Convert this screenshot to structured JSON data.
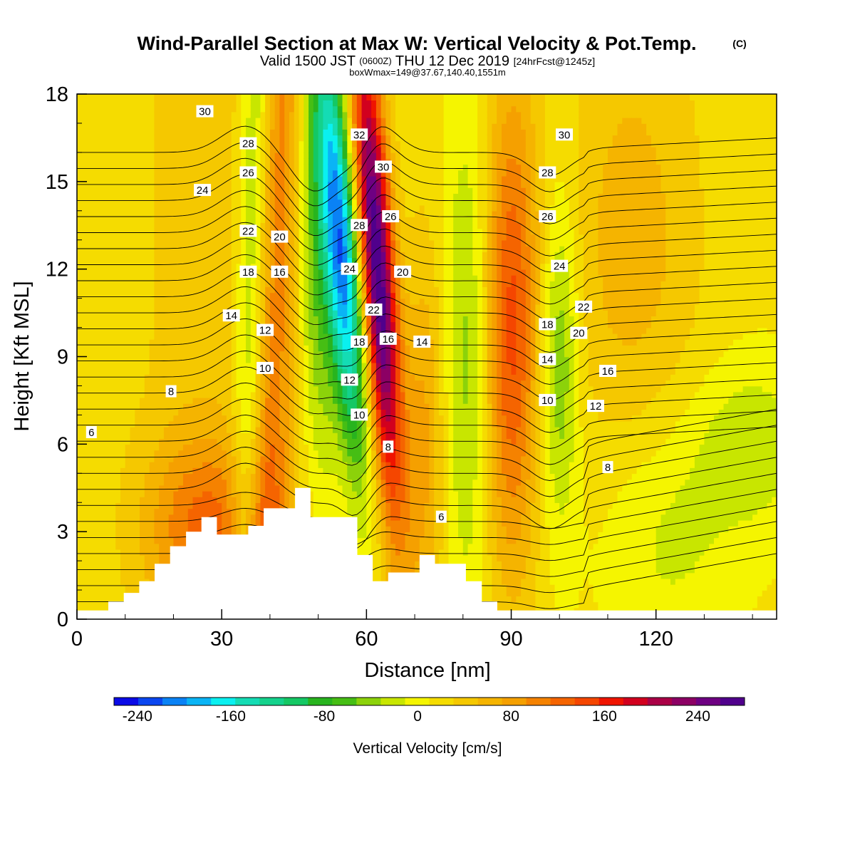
{
  "title": {
    "main": "Wind-Parallel Section at Max W: Vertical Velocity & Pot.Temp.",
    "copyright": "(C)",
    "valid_prefix": "Valid 1500 JST",
    "valid_utc": "(0600Z)",
    "valid_date": "THU 12 Dec 2019",
    "forecast": "[24hrFcst@1245z]",
    "box_info": "boxWmax=149@37.67,140.40,1551m"
  },
  "chart_data": {
    "type": "heatmap",
    "xlabel": "Distance [nm]",
    "ylabel": "Height [Kft MSL]",
    "xlim": [
      0,
      145
    ],
    "ylim": [
      0,
      18
    ],
    "x_ticks": [
      "0",
      "30",
      "60",
      "90",
      "120"
    ],
    "y_ticks": [
      "0",
      "3",
      "6",
      "9",
      "12",
      "15",
      "18"
    ],
    "x_tick_values": [
      0,
      30,
      60,
      90,
      120
    ],
    "y_tick_values": [
      0,
      3,
      6,
      9,
      12,
      15,
      18
    ],
    "colorbar": {
      "label": "Vertical Velocity [cm/s]",
      "min": -260,
      "max": 280,
      "step": 20,
      "tick_labels": [
        "-240",
        "-160",
        "-80",
        "0",
        "80",
        "160",
        "240"
      ],
      "tick_values": [
        -240,
        -160,
        -80,
        0,
        80,
        160,
        240
      ],
      "colors": [
        "#0a0ae6",
        "#0a46f0",
        "#0a82f5",
        "#0ab4f5",
        "#0af0f0",
        "#14dcb4",
        "#14d28c",
        "#14c864",
        "#28b41e",
        "#46be14",
        "#8cd20a",
        "#c8e600",
        "#f5f500",
        "#f5dc00",
        "#f5c800",
        "#f5b400",
        "#f5a000",
        "#f58200",
        "#f56400",
        "#f54600",
        "#f01400",
        "#d2001e",
        "#aa0046",
        "#8c0064",
        "#6e0082",
        "#50008c"
      ]
    },
    "terrain": {
      "x": [
        0,
        6.5,
        6.5,
        9.7,
        9.7,
        12.9,
        12.9,
        16.1,
        16.1,
        19.3,
        19.3,
        22.6,
        22.6,
        25.8,
        25.8,
        29,
        29,
        35.5,
        35.5,
        38.7,
        38.7,
        45.2,
        45.2,
        48.4,
        48.4,
        58.1,
        58.1,
        61.3,
        61.3,
        64.5,
        64.5,
        71,
        71,
        74.2,
        74.2,
        80.6,
        80.6,
        83.9,
        83.9,
        87.1,
        87.1,
        90.3,
        90.3,
        93.5,
        93.5,
        145
      ],
      "y": [
        0.3,
        0.3,
        0.6,
        0.6,
        0.9,
        0.9,
        1.3,
        1.3,
        1.9,
        1.9,
        2.5,
        2.5,
        3.0,
        3.0,
        3.5,
        3.5,
        2.9,
        2.9,
        3.2,
        3.2,
        3.8,
        3.8,
        4.5,
        4.5,
        3.5,
        3.5,
        2.2,
        2.2,
        1.3,
        1.3,
        1.6,
        1.6,
        2.2,
        2.2,
        1.9,
        1.9,
        1.3,
        1.3,
        0.6,
        0.6,
        0.3,
        0.3,
        0.3,
        0.3,
        0.3,
        0.3
      ]
    },
    "theta_contour_labels": [
      {
        "text": "30",
        "x": 26.5,
        "y": 17.4
      },
      {
        "text": "28",
        "x": 35.5,
        "y": 16.3
      },
      {
        "text": "26",
        "x": 35.5,
        "y": 15.3
      },
      {
        "text": "24",
        "x": 26,
        "y": 14.7
      },
      {
        "text": "22",
        "x": 35.5,
        "y": 13.3
      },
      {
        "text": "20",
        "x": 42,
        "y": 13.1
      },
      {
        "text": "18",
        "x": 35.5,
        "y": 11.9
      },
      {
        "text": "16",
        "x": 42,
        "y": 11.9
      },
      {
        "text": "14",
        "x": 32,
        "y": 10.4
      },
      {
        "text": "12",
        "x": 39,
        "y": 9.9
      },
      {
        "text": "10",
        "x": 39,
        "y": 8.6
      },
      {
        "text": "8",
        "x": 19.5,
        "y": 7.8
      },
      {
        "text": "6",
        "x": 3,
        "y": 6.4
      },
      {
        "text": "32",
        "x": 58.5,
        "y": 16.6
      },
      {
        "text": "30",
        "x": 63.5,
        "y": 15.5
      },
      {
        "text": "28",
        "x": 58.5,
        "y": 13.5
      },
      {
        "text": "26",
        "x": 65,
        "y": 13.8
      },
      {
        "text": "24",
        "x": 56.5,
        "y": 12
      },
      {
        "text": "20",
        "x": 67.5,
        "y": 11.9
      },
      {
        "text": "22",
        "x": 61.5,
        "y": 10.6
      },
      {
        "text": "18",
        "x": 58.5,
        "y": 9.5
      },
      {
        "text": "16",
        "x": 64.5,
        "y": 9.6
      },
      {
        "text": "14",
        "x": 71.5,
        "y": 9.5
      },
      {
        "text": "12",
        "x": 56.5,
        "y": 8.2
      },
      {
        "text": "10",
        "x": 58.5,
        "y": 7
      },
      {
        "text": "8",
        "x": 64.5,
        "y": 5.9
      },
      {
        "text": "6",
        "x": 75.5,
        "y": 3.5
      },
      {
        "text": "30",
        "x": 101,
        "y": 16.6
      },
      {
        "text": "28",
        "x": 97.5,
        "y": 15.3
      },
      {
        "text": "26",
        "x": 97.5,
        "y": 13.8
      },
      {
        "text": "24",
        "x": 100,
        "y": 12.1
      },
      {
        "text": "22",
        "x": 105,
        "y": 10.7
      },
      {
        "text": "18",
        "x": 97.5,
        "y": 10.1
      },
      {
        "text": "20",
        "x": 104,
        "y": 9.8
      },
      {
        "text": "14",
        "x": 97.5,
        "y": 8.9
      },
      {
        "text": "16",
        "x": 110,
        "y": 8.5
      },
      {
        "text": "10",
        "x": 97.5,
        "y": 7.5
      },
      {
        "text": "12",
        "x": 107.5,
        "y": 7.3
      },
      {
        "text": "8",
        "x": 110,
        "y": 5.2
      }
    ]
  }
}
